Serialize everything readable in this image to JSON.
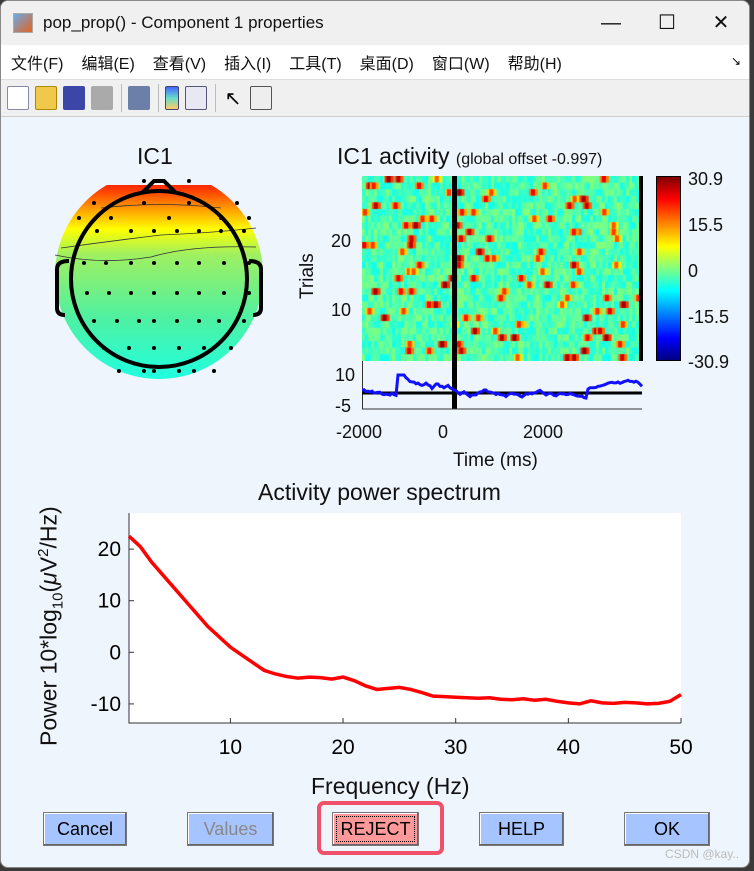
{
  "window": {
    "title": "pop_prop() - Component 1 properties",
    "minimize": "—",
    "maximize": "☐",
    "close": "✕"
  },
  "menu": [
    "文件(F)",
    "编辑(E)",
    "查看(V)",
    "插入(I)",
    "工具(T)",
    "桌面(D)",
    "窗口(W)",
    "帮助(H)"
  ],
  "menu_overflow": "↘",
  "toolbar": [
    "new-file-icon",
    "open-folder-icon",
    "save-icon",
    "print-icon",
    "link-figure-icon",
    "colorbar-icon",
    "legend-icon",
    "pointer-icon",
    "property-inspector-icon"
  ],
  "topo": {
    "title": "IC1"
  },
  "erpimage": {
    "title": "IC1 activity",
    "subtitle": "(global offset -0.997)",
    "ylabel": "Trials",
    "yticks": [
      "20",
      "10"
    ],
    "colorbar_ticks": [
      "30.9",
      "15.5",
      "0",
      "-15.5",
      "-30.9"
    ],
    "erp_yticks": [
      "10",
      "-5"
    ],
    "xticks": [
      "-2000",
      "0",
      "2000"
    ],
    "xlabel": "Time (ms)"
  },
  "chart_data": {
    "type": "line",
    "title": "Activity power spectrum",
    "xlabel": "Frequency (Hz)",
    "ylabel": "Power 10*log10(μV²/Hz)",
    "xlim": [
      1,
      50
    ],
    "ylim": [
      -13.7,
      27
    ],
    "xticks": [
      10,
      20,
      30,
      40,
      50
    ],
    "yticks": [
      20,
      10,
      0,
      -10
    ],
    "series": [
      {
        "color": "#ff0000",
        "x": [
          1,
          2,
          3,
          4,
          5,
          6,
          7,
          8,
          9,
          10,
          11,
          12,
          13,
          14,
          15,
          16,
          17,
          18,
          19,
          20,
          21,
          22,
          23,
          24,
          25,
          26,
          27,
          28,
          29,
          30,
          31,
          32,
          33,
          34,
          35,
          36,
          37,
          38,
          39,
          40,
          41,
          42,
          43,
          44,
          45,
          46,
          47,
          48,
          49,
          50
        ],
        "y": [
          22.5,
          20.5,
          17.5,
          15,
          12.5,
          10,
          7.5,
          5,
          3,
          1,
          -0.5,
          -2,
          -3.5,
          -4.2,
          -4.7,
          -5,
          -4.8,
          -4.9,
          -5.2,
          -4.8,
          -5.5,
          -6.5,
          -7.2,
          -7,
          -6.8,
          -7.2,
          -7.8,
          -8.5,
          -8.6,
          -8.7,
          -8.8,
          -8.9,
          -8.8,
          -9.1,
          -9.2,
          -9,
          -9.3,
          -9.1,
          -9.5,
          -9.8,
          -10,
          -9.4,
          -9.8,
          -9.9,
          -9.7,
          -9.8,
          -10,
          -9.9,
          -9.5,
          -8.2
        ]
      }
    ]
  },
  "buttons": {
    "cancel": "Cancel",
    "values": "Values",
    "reject": "REJECT",
    "help": "HELP",
    "ok": "OK"
  },
  "watermark": "CSDN @kay..",
  "colors": {
    "reject_bg": "#ff9999",
    "button_bg": "#a6c4ff",
    "highlight": "#f0506a",
    "window_bg": "#eef5fd"
  }
}
